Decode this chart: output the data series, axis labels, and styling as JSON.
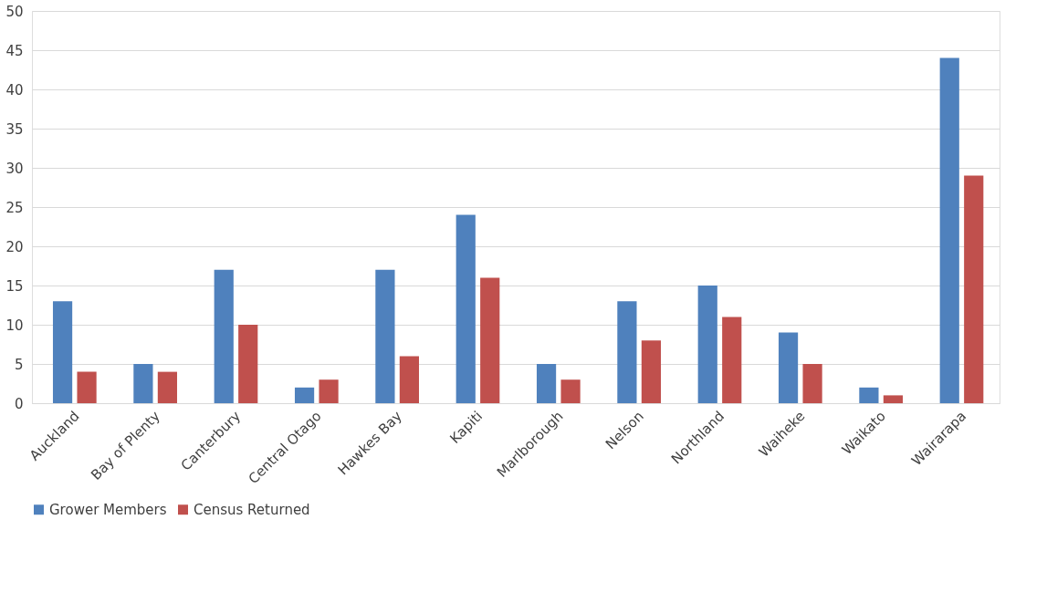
{
  "chart_data": {
    "type": "bar",
    "categories": [
      "Auckland",
      "Bay of Plenty",
      "Canterbury",
      "Central Otago",
      "Hawkes Bay",
      "Kapiti",
      "Marlborough",
      "Nelson",
      "Northland",
      "Waiheke",
      "Waikato",
      "Wairarapa"
    ],
    "series": [
      {
        "name": "Grower Members",
        "color": "#4f81bd",
        "values": [
          13,
          5,
          17,
          2,
          17,
          24,
          5,
          13,
          15,
          9,
          2,
          44
        ]
      },
      {
        "name": "Census Returned",
        "color": "#c0504d",
        "values": [
          4,
          4,
          10,
          3,
          6,
          16,
          3,
          8,
          11,
          5,
          1,
          29
        ]
      }
    ],
    "ylim": [
      0,
      50
    ],
    "yticks": [
      0,
      5,
      10,
      15,
      20,
      25,
      30,
      35,
      40,
      45,
      50
    ],
    "grid": "y",
    "legend": "bottom"
  }
}
